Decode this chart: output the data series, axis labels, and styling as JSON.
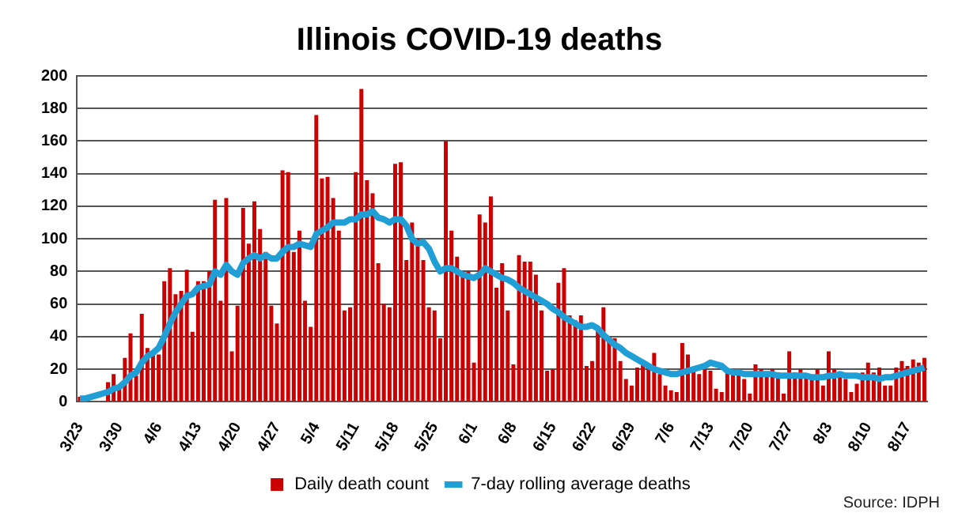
{
  "chart_data": {
    "type": "bar",
    "title": "Illinois COVID-19 deaths",
    "annotations": [
      "Source: IDPH"
    ],
    "categories": [
      "3/23",
      null,
      null,
      null,
      null,
      null,
      null,
      "3/30",
      null,
      null,
      null,
      null,
      null,
      null,
      "4/6",
      null,
      null,
      null,
      null,
      null,
      null,
      "4/13",
      null,
      null,
      null,
      null,
      null,
      null,
      "4/20",
      null,
      null,
      null,
      null,
      null,
      null,
      "4/27",
      null,
      null,
      null,
      null,
      null,
      null,
      "5/4",
      null,
      null,
      null,
      null,
      null,
      null,
      "5/11",
      null,
      null,
      null,
      null,
      null,
      null,
      "5/18",
      null,
      null,
      null,
      null,
      null,
      null,
      "5/25",
      null,
      null,
      null,
      null,
      null,
      null,
      "6/1",
      null,
      null,
      null,
      null,
      null,
      null,
      "6/8",
      null,
      null,
      null,
      null,
      null,
      null,
      "6/15",
      null,
      null,
      null,
      null,
      null,
      null,
      "6/22",
      null,
      null,
      null,
      null,
      null,
      null,
      "6/29",
      null,
      null,
      null,
      null,
      null,
      null,
      "7/6",
      null,
      null,
      null,
      null,
      null,
      null,
      "7/13",
      null,
      null,
      null,
      null,
      null,
      null,
      "7/20",
      null,
      null,
      null,
      null,
      null,
      null,
      "7/27",
      null,
      null,
      null,
      null,
      null,
      null,
      "8/3",
      null,
      null,
      null,
      null,
      null,
      null,
      "8/10",
      null,
      null,
      null,
      null,
      null,
      null,
      "8/17",
      null,
      null,
      null
    ],
    "series": [
      {
        "name": "Daily death count",
        "color": "#cc0000",
        "values": [
          3,
          null,
          null,
          null,
          null,
          12,
          17,
          10,
          27,
          42,
          16,
          54,
          33,
          29,
          29,
          74,
          82,
          66,
          68,
          81,
          43,
          74,
          74,
          80,
          124,
          62,
          125,
          31,
          59,
          119,
          97,
          123,
          106,
          92,
          59,
          48,
          142,
          141,
          92,
          105,
          62,
          46,
          176,
          137,
          138,
          125,
          105,
          56,
          58,
          141,
          192,
          136,
          128,
          85,
          60,
          58,
          146,
          147,
          87,
          110,
          100,
          87,
          58,
          56,
          39,
          160,
          105,
          89,
          80,
          80,
          24,
          115,
          110,
          126,
          70,
          85,
          56,
          23,
          90,
          86,
          86,
          78,
          56,
          19,
          20,
          73,
          82,
          53,
          50,
          53,
          22,
          25,
          45,
          58,
          40,
          39,
          25,
          14,
          10,
          21,
          25,
          22,
          30,
          17,
          10,
          7,
          6,
          36,
          29,
          20,
          17,
          23,
          19,
          8,
          6,
          19,
          20,
          18,
          14,
          5,
          23,
          20,
          18,
          20,
          18,
          5,
          31,
          18,
          20,
          16,
          14,
          20,
          10,
          31,
          20,
          18,
          14,
          6,
          11,
          18,
          24,
          18,
          21,
          10,
          10,
          21,
          25,
          22,
          26,
          24,
          27
        ]
      },
      {
        "name": "7-day rolling average deaths",
        "type": "line",
        "color": "#1f9fd6",
        "values": [
          2,
          2,
          3,
          4,
          5,
          6,
          8,
          9,
          12,
          16,
          18,
          24,
          28,
          30,
          33,
          40,
          48,
          55,
          60,
          65,
          66,
          70,
          71,
          72,
          80,
          78,
          84,
          80,
          78,
          85,
          88,
          90,
          88,
          90,
          88,
          88,
          92,
          95,
          95,
          97,
          96,
          95,
          103,
          105,
          107,
          110,
          110,
          110,
          112,
          112,
          115,
          115,
          117,
          113,
          112,
          110,
          112,
          112,
          108,
          100,
          97,
          98,
          94,
          86,
          80,
          82,
          82,
          80,
          78,
          77,
          76,
          78,
          82,
          80,
          78,
          76,
          75,
          73,
          70,
          68,
          66,
          64,
          62,
          60,
          57,
          55,
          52,
          50,
          48,
          46,
          46,
          47,
          45,
          41,
          38,
          35,
          33,
          30,
          28,
          26,
          24,
          22,
          20,
          19,
          18,
          17,
          17,
          18,
          19,
          20,
          21,
          22,
          24,
          23,
          22,
          19,
          18,
          18,
          17,
          17,
          17,
          17,
          17,
          17,
          16,
          16,
          16,
          16,
          16,
          16,
          15,
          15,
          15,
          16,
          16,
          17,
          16,
          16,
          16,
          15,
          15,
          15,
          14,
          15,
          15,
          16,
          17,
          18,
          19,
          20,
          21
        ]
      }
    ],
    "ylim": [
      0,
      200
    ],
    "yticks": [
      0,
      20,
      40,
      60,
      80,
      100,
      120,
      140,
      160,
      180,
      200
    ],
    "grid": "y",
    "legend": "bottom"
  }
}
